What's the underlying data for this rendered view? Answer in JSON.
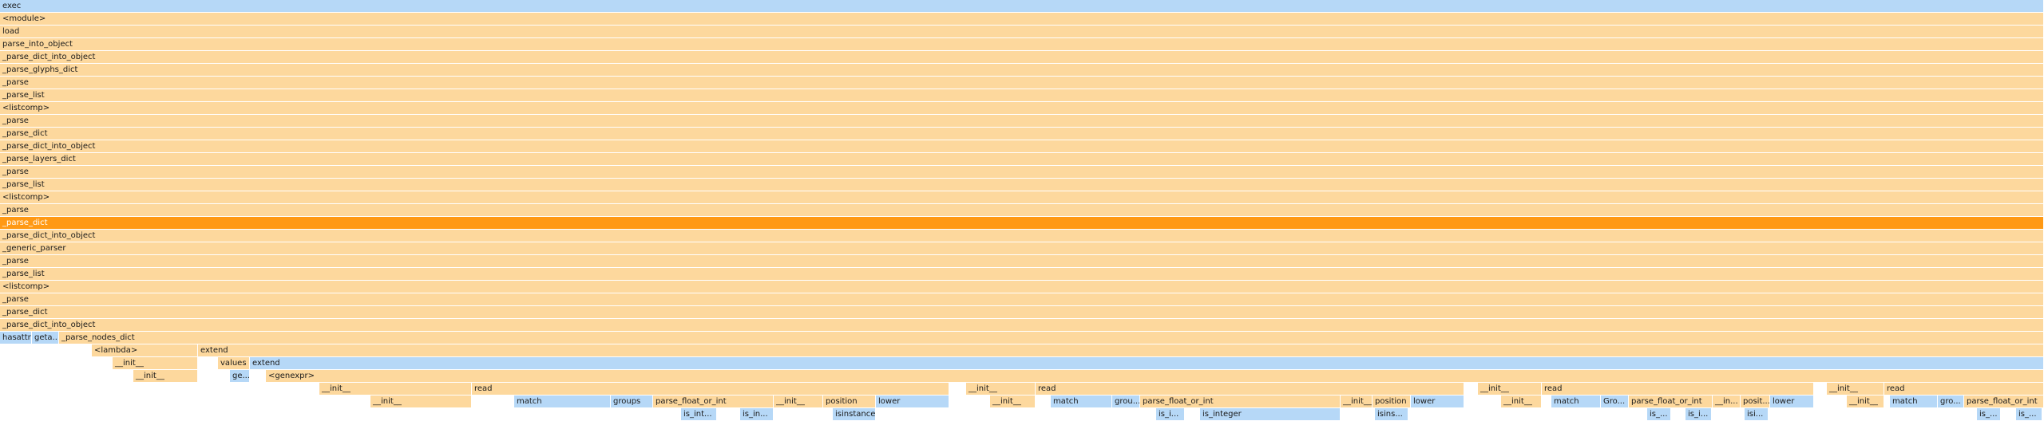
{
  "flamegraph": {
    "colors": {
      "python": "#fdd89d",
      "native": "#b6d8f7",
      "selected": "#ff9914"
    },
    "frames": [
      {
        "name": "exec",
        "depth": 0,
        "start": 0,
        "width": 2560,
        "kind": "native"
      },
      {
        "name": "<module>",
        "depth": 1,
        "start": 0,
        "width": 2560,
        "kind": "python"
      },
      {
        "name": "load",
        "depth": 2,
        "start": 0,
        "width": 2560,
        "kind": "python"
      },
      {
        "name": "parse_into_object",
        "depth": 3,
        "start": 0,
        "width": 2560,
        "kind": "python"
      },
      {
        "name": "_parse_dict_into_object",
        "depth": 4,
        "start": 0,
        "width": 2560,
        "kind": "python"
      },
      {
        "name": "_parse_glyphs_dict",
        "depth": 5,
        "start": 0,
        "width": 2560,
        "kind": "python"
      },
      {
        "name": "_parse",
        "depth": 6,
        "start": 0,
        "width": 2560,
        "kind": "python"
      },
      {
        "name": "_parse_list",
        "depth": 7,
        "start": 0,
        "width": 2560,
        "kind": "python"
      },
      {
        "name": "<listcomp>",
        "depth": 8,
        "start": 0,
        "width": 2560,
        "kind": "python"
      },
      {
        "name": "_parse",
        "depth": 9,
        "start": 0,
        "width": 2560,
        "kind": "python"
      },
      {
        "name": "_parse_dict",
        "depth": 10,
        "start": 0,
        "width": 2560,
        "kind": "python"
      },
      {
        "name": "_parse_dict_into_object",
        "depth": 11,
        "start": 0,
        "width": 2560,
        "kind": "python"
      },
      {
        "name": "_parse_layers_dict",
        "depth": 12,
        "start": 0,
        "width": 2560,
        "kind": "python"
      },
      {
        "name": "_parse",
        "depth": 13,
        "start": 0,
        "width": 2560,
        "kind": "python"
      },
      {
        "name": "_parse_list",
        "depth": 14,
        "start": 0,
        "width": 2560,
        "kind": "python"
      },
      {
        "name": "<listcomp>",
        "depth": 15,
        "start": 0,
        "width": 2560,
        "kind": "python"
      },
      {
        "name": "_parse",
        "depth": 16,
        "start": 0,
        "width": 2560,
        "kind": "python"
      },
      {
        "name": "_parse_dict",
        "depth": 17,
        "start": 0,
        "width": 2560,
        "kind": "selected"
      },
      {
        "name": "_parse_dict_into_object",
        "depth": 18,
        "start": 0,
        "width": 2560,
        "kind": "python"
      },
      {
        "name": "_generic_parser",
        "depth": 19,
        "start": 0,
        "width": 2560,
        "kind": "python"
      },
      {
        "name": "_parse",
        "depth": 20,
        "start": 0,
        "width": 2560,
        "kind": "python"
      },
      {
        "name": "_parse_list",
        "depth": 21,
        "start": 0,
        "width": 2560,
        "kind": "python"
      },
      {
        "name": "<listcomp>",
        "depth": 22,
        "start": 0,
        "width": 2560,
        "kind": "python"
      },
      {
        "name": "_parse",
        "depth": 23,
        "start": 0,
        "width": 2560,
        "kind": "python"
      },
      {
        "name": "_parse_dict",
        "depth": 24,
        "start": 0,
        "width": 2560,
        "kind": "python"
      },
      {
        "name": "_parse_dict_into_object",
        "depth": 25,
        "start": 0,
        "width": 2560,
        "kind": "python"
      },
      {
        "name": "hasattr",
        "depth": 26,
        "start": 0,
        "width": 40,
        "kind": "native"
      },
      {
        "name": "geta...",
        "depth": 26,
        "start": 40,
        "width": 34,
        "kind": "native"
      },
      {
        "name": "_parse_nodes_dict",
        "depth": 26,
        "start": 74,
        "width": 2486,
        "kind": "python"
      },
      {
        "name": "<lambda>",
        "depth": 27,
        "start": 115,
        "width": 133,
        "kind": "python"
      },
      {
        "name": "extend",
        "depth": 27,
        "start": 248,
        "width": 2312,
        "kind": "python"
      },
      {
        "name": "__init__",
        "depth": 28,
        "start": 141,
        "width": 107,
        "kind": "python"
      },
      {
        "name": "values",
        "depth": 28,
        "start": 273,
        "width": 40,
        "kind": "python"
      },
      {
        "name": "extend",
        "depth": 28,
        "start": 313,
        "width": 2247,
        "kind": "native"
      },
      {
        "name": "__init__",
        "depth": 29,
        "start": 167,
        "width": 81,
        "kind": "python"
      },
      {
        "name": "ge...",
        "depth": 29,
        "start": 288,
        "width": 25,
        "kind": "native"
      },
      {
        "name": "<genexpr>",
        "depth": 29,
        "start": 333,
        "width": 2227,
        "kind": "python"
      },
      {
        "name": "__init__",
        "depth": 30,
        "start": 400,
        "width": 191,
        "kind": "python"
      },
      {
        "name": "read",
        "depth": 30,
        "start": 591,
        "width": 598,
        "kind": "python"
      },
      {
        "name": "__init__",
        "depth": 30,
        "start": 1210,
        "width": 87,
        "kind": "python"
      },
      {
        "name": "read",
        "depth": 30,
        "start": 1297,
        "width": 537,
        "kind": "python"
      },
      {
        "name": "__init__",
        "depth": 30,
        "start": 1851,
        "width": 80,
        "kind": "python"
      },
      {
        "name": "read",
        "depth": 30,
        "start": 1931,
        "width": 341,
        "kind": "python"
      },
      {
        "name": "__init__",
        "depth": 30,
        "start": 2288,
        "width": 72,
        "kind": "python"
      },
      {
        "name": "read",
        "depth": 30,
        "start": 2360,
        "width": 200,
        "kind": "python"
      },
      {
        "name": "__init__",
        "depth": 31,
        "start": 464,
        "width": 127,
        "kind": "python"
      },
      {
        "name": "match",
        "depth": 31,
        "start": 644,
        "width": 121,
        "kind": "native"
      },
      {
        "name": "groups",
        "depth": 31,
        "start": 765,
        "width": 53,
        "kind": "native"
      },
      {
        "name": "parse_float_or_int",
        "depth": 31,
        "start": 818,
        "width": 151,
        "kind": "python"
      },
      {
        "name": "__init__",
        "depth": 31,
        "start": 969,
        "width": 62,
        "kind": "python"
      },
      {
        "name": "position",
        "depth": 31,
        "start": 1031,
        "width": 66,
        "kind": "python"
      },
      {
        "name": "lower",
        "depth": 31,
        "start": 1097,
        "width": 92,
        "kind": "native"
      },
      {
        "name": "__init__",
        "depth": 31,
        "start": 1240,
        "width": 57,
        "kind": "python"
      },
      {
        "name": "match",
        "depth": 31,
        "start": 1316,
        "width": 77,
        "kind": "native"
      },
      {
        "name": "grou...",
        "depth": 31,
        "start": 1393,
        "width": 35,
        "kind": "native"
      },
      {
        "name": "parse_float_or_int",
        "depth": 31,
        "start": 1428,
        "width": 251,
        "kind": "python"
      },
      {
        "name": "__init__",
        "depth": 31,
        "start": 1679,
        "width": 40,
        "kind": "python"
      },
      {
        "name": "position",
        "depth": 31,
        "start": 1719,
        "width": 48,
        "kind": "python"
      },
      {
        "name": "lower",
        "depth": 31,
        "start": 1767,
        "width": 67,
        "kind": "native"
      },
      {
        "name": "__init__",
        "depth": 31,
        "start": 1880,
        "width": 51,
        "kind": "python"
      },
      {
        "name": "match",
        "depth": 31,
        "start": 1943,
        "width": 62,
        "kind": "native"
      },
      {
        "name": "Gro...",
        "depth": 31,
        "start": 2005,
        "width": 35,
        "kind": "native"
      },
      {
        "name": "parse_float_or_int",
        "depth": 31,
        "start": 2040,
        "width": 105,
        "kind": "python"
      },
      {
        "name": "__in...",
        "depth": 31,
        "start": 2145,
        "width": 35,
        "kind": "python"
      },
      {
        "name": "posit...",
        "depth": 31,
        "start": 2180,
        "width": 37,
        "kind": "python"
      },
      {
        "name": "lower",
        "depth": 31,
        "start": 2217,
        "width": 55,
        "kind": "native"
      },
      {
        "name": "__init__",
        "depth": 31,
        "start": 2313,
        "width": 47,
        "kind": "python"
      },
      {
        "name": "match",
        "depth": 31,
        "start": 2367,
        "width": 60,
        "kind": "native"
      },
      {
        "name": "gro...",
        "depth": 31,
        "start": 2427,
        "width": 33,
        "kind": "native"
      },
      {
        "name": "parse_float_or_int",
        "depth": 31,
        "start": 2460,
        "width": 100,
        "kind": "python"
      },
      {
        "name": "is_int...",
        "depth": 32,
        "start": 853,
        "width": 45,
        "kind": "native"
      },
      {
        "name": "is_in...",
        "depth": 32,
        "start": 927,
        "width": 42,
        "kind": "native"
      },
      {
        "name": "isinstance",
        "depth": 32,
        "start": 1043,
        "width": 54,
        "kind": "native"
      },
      {
        "name": "is_i...",
        "depth": 32,
        "start": 1448,
        "width": 36,
        "kind": "native"
      },
      {
        "name": "is_integer",
        "depth": 32,
        "start": 1503,
        "width": 176,
        "kind": "native"
      },
      {
        "name": "isins...",
        "depth": 32,
        "start": 1722,
        "width": 42,
        "kind": "native"
      },
      {
        "name": "is_...",
        "depth": 32,
        "start": 2063,
        "width": 30,
        "kind": "native"
      },
      {
        "name": "is_i...",
        "depth": 32,
        "start": 2111,
        "width": 33,
        "kind": "native"
      },
      {
        "name": "isi...",
        "depth": 32,
        "start": 2185,
        "width": 30,
        "kind": "native"
      },
      {
        "name": "is_...",
        "depth": 32,
        "start": 2476,
        "width": 30,
        "kind": "native"
      },
      {
        "name": "is_...",
        "depth": 32,
        "start": 2525,
        "width": 33,
        "kind": "native"
      }
    ]
  }
}
